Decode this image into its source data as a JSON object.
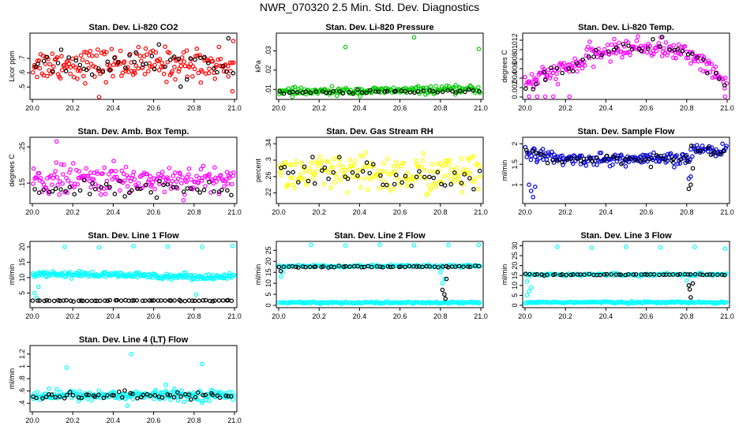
{
  "title": "NWR_070320  2.5 Min. Std. Dev. Diagnostics",
  "chart_data": [
    {
      "type": "scatter",
      "title": "Stan. Dev. Li-820 CO2",
      "ylabel": "Licor ppm",
      "xlim": [
        20.0,
        21.0
      ],
      "xticks": [
        20.0,
        20.2,
        20.4,
        20.6,
        20.8,
        21.0
      ],
      "ylim": [
        0.43,
        0.86
      ],
      "yticks": [
        0.5,
        0.6,
        0.7
      ],
      "series": [
        {
          "color": "#ff0000",
          "center": 0.66,
          "spread": 0.07,
          "count": 200,
          "outliers": [
            [
              20.33,
              0.43
            ],
            [
              20.99,
              0.47
            ]
          ]
        },
        {
          "color": "#000000",
          "center": 0.67,
          "spread": 0.06,
          "count": 45,
          "outliers": [
            [
              20.97,
              0.84
            ]
          ]
        }
      ]
    },
    {
      "type": "scatter",
      "title": "Stan. Dev. Li-820 Pressure",
      "ylabel": "kPa",
      "xlim": [
        20.0,
        21.0
      ],
      "xticks": [
        20.0,
        20.2,
        20.4,
        20.6,
        20.8,
        21.0
      ],
      "ylim": [
        0.006,
        0.038
      ],
      "yticks": [
        0.01,
        0.02,
        0.03
      ],
      "series": [
        {
          "color": "#00cc00",
          "center": 0.0085,
          "spread": 0.0012,
          "count": 200,
          "trend": 0.0015,
          "outliers": [
            [
              20.33,
              0.032
            ],
            [
              20.67,
              0.037
            ],
            [
              20.99,
              0.031
            ]
          ]
        },
        {
          "color": "#000000",
          "center": 0.0083,
          "spread": 0.0008,
          "count": 45,
          "trend": 0.001
        }
      ]
    },
    {
      "type": "scatter",
      "title": "Stan. Dev. Li-820 Temp.",
      "ylabel": "degrees C",
      "xlim": [
        20.0,
        21.0
      ],
      "xticks": [
        20.0,
        20.2,
        20.4,
        20.6,
        20.8,
        21.0
      ],
      "ylim": [
        0.0,
        0.013
      ],
      "yticks": [
        0.0,
        0.002,
        0.004,
        0.006,
        0.008,
        0.01,
        0.012
      ],
      "series": [
        {
          "color": "#ff00ff",
          "profile": "arch",
          "spread": 0.0012,
          "count": 200,
          "outliers": [
            [
              20.02,
              0.0001
            ],
            [
              20.06,
              0.0001
            ],
            [
              20.1,
              0.0001
            ],
            [
              20.14,
              0.0001
            ],
            [
              20.22,
              0.0001
            ],
            [
              20.99,
              0.0001
            ]
          ]
        },
        {
          "color": "#000000",
          "profile": "arch",
          "spread": 0.001,
          "count": 40
        }
      ]
    },
    {
      "type": "scatter",
      "title": "Stan. Dev. Amb. Box Temp.",
      "ylabel": "degrees C",
      "xlim": [
        20.0,
        21.0
      ],
      "xticks": [
        20.0,
        20.2,
        20.4,
        20.6,
        20.8,
        21.0
      ],
      "ylim": [
        0.1,
        0.27
      ],
      "yticks": [
        0.15,
        0.25
      ],
      "series": [
        {
          "color": "#ff00ff",
          "center": 0.16,
          "spread": 0.025,
          "count": 200,
          "outliers": [
            [
              20.12,
              0.265
            ]
          ]
        },
        {
          "color": "#000000",
          "center": 0.135,
          "spread": 0.012,
          "count": 45
        }
      ]
    },
    {
      "type": "scatter",
      "title": "Stan. Dev. Gas Stream RH",
      "ylabel": "percent",
      "xlim": [
        20.0,
        21.0
      ],
      "xticks": [
        20.0,
        20.2,
        20.4,
        20.6,
        20.8,
        21.0
      ],
      "ylim": [
        0.2,
        0.35
      ],
      "yticks": [
        0.22,
        0.26,
        0.3,
        0.34
      ],
      "series": [
        {
          "color": "#ffff00",
          "center": 0.265,
          "spread": 0.03,
          "count": 200
        },
        {
          "color": "#000000",
          "center": 0.262,
          "spread": 0.025,
          "count": 45
        }
      ]
    },
    {
      "type": "scatter",
      "title": "Stan. Dev. Sample Flow",
      "ylabel": "ml/min",
      "xlim": [
        20.0,
        21.0
      ],
      "xticks": [
        20.0,
        20.2,
        20.4,
        20.6,
        20.8,
        21.0
      ],
      "ylim": [
        0.6,
        2.1
      ],
      "yticks": [
        1.0,
        1.5,
        2.0
      ],
      "series": [
        {
          "color": "#0000cc",
          "profile": "sample",
          "spread": 0.09,
          "count": 200,
          "outliers": [
            [
              20.02,
              1.0
            ],
            [
              20.03,
              0.85
            ],
            [
              20.04,
              0.7
            ],
            [
              20.05,
              0.95
            ],
            [
              20.81,
              1.15
            ],
            [
              20.82,
              1.2
            ]
          ]
        },
        {
          "color": "#000000",
          "profile": "sample",
          "spread": 0.07,
          "count": 45,
          "outliers": [
            [
              20.81,
              0.9
            ],
            [
              20.82,
              1.0
            ],
            [
              20.83,
              1.4
            ]
          ]
        }
      ]
    },
    {
      "type": "scatter",
      "title": "Stan. Dev. Line 1 Flow",
      "ylabel": "ml/min",
      "xlim": [
        20.0,
        21.0
      ],
      "xticks": [
        20.0,
        20.2,
        20.4,
        20.6,
        20.8,
        21.0
      ],
      "ylim": [
        1.0,
        21.0
      ],
      "yticks": [
        5,
        10,
        15,
        20
      ],
      "series": [
        {
          "color": "#00ffff",
          "center": 11.3,
          "spread": 0.6,
          "count": 220,
          "trend": -1.2,
          "outliers": [
            [
              20.01,
              5.0
            ],
            [
              20.02,
              3.5
            ],
            [
              20.03,
              7.0
            ],
            [
              20.16,
              20.0
            ],
            [
              20.33,
              19.8
            ],
            [
              20.5,
              20.2
            ],
            [
              20.67,
              20.1
            ],
            [
              20.84,
              20.0
            ],
            [
              20.99,
              20.3
            ],
            [
              20.81,
              4.5
            ]
          ]
        },
        {
          "color": "#000000",
          "center": 2.5,
          "spread": 0.12,
          "count": 60
        }
      ]
    },
    {
      "type": "scatter",
      "title": "Stan. Dev. Line 2 Flow",
      "ylabel": "ml/min",
      "xlim": [
        20.0,
        21.0
      ],
      "xticks": [
        20.0,
        20.2,
        20.4,
        20.6,
        20.8,
        21.0
      ],
      "ylim": [
        0.0,
        28.0
      ],
      "yticks": [
        0,
        5,
        10,
        15,
        20,
        25
      ],
      "series": [
        {
          "color": "#00ffff",
          "center": 1.2,
          "spread": 0.3,
          "count": 160,
          "outliers": [
            [
              20.16,
              27.5
            ],
            [
              20.33,
              27.2
            ],
            [
              20.5,
              27.6
            ],
            [
              20.67,
              27.3
            ],
            [
              20.84,
              27.4
            ],
            [
              20.99,
              27.5
            ]
          ]
        },
        {
          "color": "#00ffff",
          "center": 17.8,
          "spread": 0.4,
          "count": 140,
          "outliers": [
            [
              20.01,
              13.0
            ],
            [
              20.02,
              15.0
            ],
            [
              20.8,
              15.0
            ],
            [
              20.81,
              10.0
            ],
            [
              20.82,
              12.0
            ]
          ]
        },
        {
          "color": "#000000",
          "center": 17.5,
          "spread": 0.2,
          "count": 55,
          "outliers": [
            [
              20.01,
              15.5
            ],
            [
              20.81,
              7.0
            ],
            [
              20.82,
              5.0
            ],
            [
              20.825,
              3.0
            ],
            [
              20.83,
              12.0
            ]
          ]
        }
      ]
    },
    {
      "type": "scatter",
      "title": "Stan. Dev. Line 3 Flow",
      "ylabel": "ml/min",
      "xlim": [
        20.0,
        21.0
      ],
      "xticks": [
        20.0,
        20.2,
        20.4,
        20.6,
        20.8,
        21.0
      ],
      "ylim": [
        0.0,
        31.0
      ],
      "yticks": [
        0,
        5,
        10,
        15,
        20,
        25,
        30
      ],
      "series": [
        {
          "color": "#00ffff",
          "center": 1.5,
          "spread": 0.3,
          "count": 160,
          "outliers": [
            [
              20.01,
              5.0
            ],
            [
              20.02,
              7.0
            ],
            [
              20.03,
              9.0
            ],
            [
              20.16,
              29.5
            ],
            [
              20.33,
              29.0
            ],
            [
              20.5,
              29.5
            ],
            [
              20.67,
              29.2
            ],
            [
              20.84,
              29.4
            ],
            [
              20.99,
              28.5
            ]
          ]
        },
        {
          "color": "#00ffff",
          "center": 15.5,
          "spread": 0.4,
          "count": 140,
          "outliers": [
            [
              20.01,
              12.0
            ],
            [
              20.8,
              12.5
            ],
            [
              20.81,
              10.0
            ]
          ]
        },
        {
          "color": "#000000",
          "center": 15.5,
          "spread": 0.2,
          "count": 55,
          "outliers": [
            [
              20.81,
              10.0
            ],
            [
              20.815,
              8.0
            ],
            [
              20.82,
              4.0
            ],
            [
              20.83,
              11.0
            ]
          ]
        }
      ]
    },
    {
      "type": "scatter",
      "title": "Stan. Dev. Line 4 (LT) Flow",
      "ylabel": "ml/min",
      "xlim": [
        20.0,
        21.0
      ],
      "xticks": [
        20.0,
        20.2,
        20.4,
        20.6,
        20.8,
        21.0
      ],
      "ylim": [
        0.3,
        1.3
      ],
      "yticks": [
        0.4,
        0.6,
        0.8,
        1.0,
        1.2
      ],
      "series": [
        {
          "color": "#00ffff",
          "center": 0.53,
          "spread": 0.05,
          "count": 220,
          "outliers": [
            [
              20.17,
              0.98
            ],
            [
              20.49,
              1.2
            ],
            [
              20.84,
              1.04
            ],
            [
              20.66,
              0.7
            ],
            [
              20.47,
              0.36
            ]
          ]
        },
        {
          "color": "#000000",
          "center": 0.53,
          "spread": 0.04,
          "count": 55
        }
      ]
    }
  ]
}
